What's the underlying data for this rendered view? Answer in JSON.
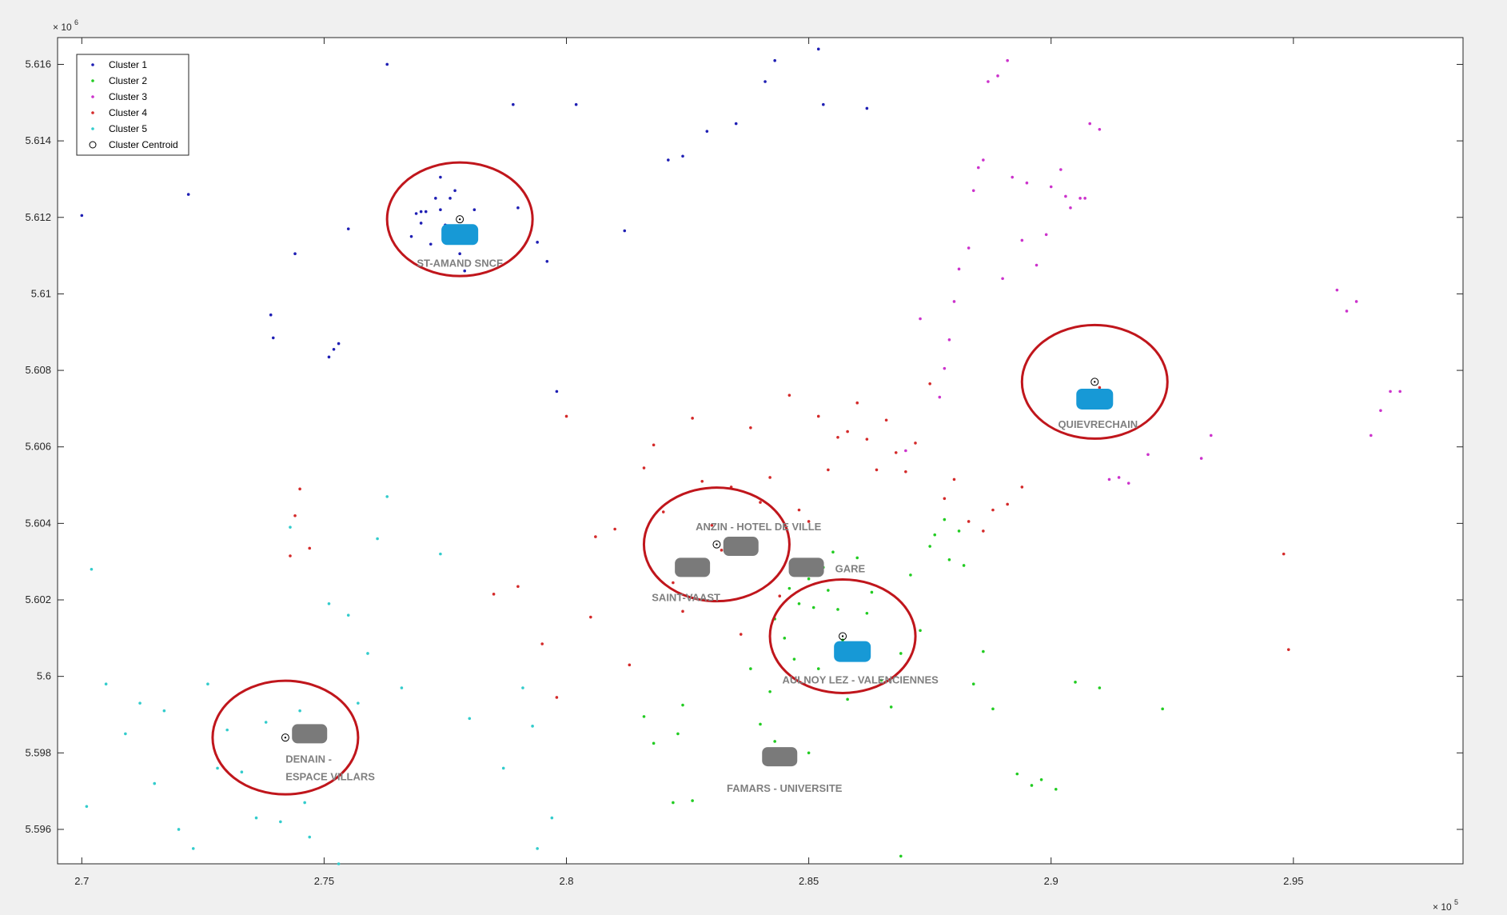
{
  "figure": {
    "x_exponent_base": "× 10",
    "x_exponent_power": "5",
    "y_exponent_base": "× 10",
    "y_exponent_power": "6"
  },
  "colors": {
    "cluster1": "#1f1fb4",
    "cluster2": "#22cc22",
    "cluster3": "#cc33cc",
    "cluster4": "#d42a2a",
    "cluster5": "#33cccc",
    "centroid": "#000000",
    "highlight_ring": "#c0161c",
    "blue_station": "#1799d6",
    "grey_station": "#7a7a7a",
    "station_label": "#808080"
  },
  "chart_data": {
    "type": "scatter",
    "xlim": [
      269500,
      298500
    ],
    "ylim": [
      5595100,
      5616700
    ],
    "x_ticks": [
      270000,
      275000,
      280000,
      285000,
      290000,
      295000
    ],
    "x_tick_labels": [
      "2.7",
      "2.75",
      "2.8",
      "2.85",
      "2.9",
      "2.95"
    ],
    "y_ticks": [
      5596000,
      5598000,
      5600000,
      5602000,
      5604000,
      5606000,
      5608000,
      5610000,
      5612000,
      5614000,
      5616000
    ],
    "y_tick_labels": [
      "5.596",
      "5.598",
      "5.6",
      "5.602",
      "5.604",
      "5.606",
      "5.608",
      "5.61",
      "5.612",
      "5.614",
      "5.616"
    ],
    "grid": false,
    "legend_position": "top-left",
    "legend": [
      "Cluster 1",
      "Cluster 2",
      "Cluster 3",
      "Cluster 4",
      "Cluster 5",
      "Cluster Centroid"
    ],
    "series": [
      {
        "name": "Cluster 1",
        "color": "#1f1fb4",
        "x": [
          270000,
          272200,
          273900,
          273950,
          274400,
          275100,
          275200,
          275300,
          275500,
          276300,
          276800,
          276900,
          277000,
          277000,
          277100,
          277200,
          277300,
          277400,
          277400,
          277500,
          277600,
          277700,
          277800,
          277900,
          278100,
          278900,
          279000,
          279400,
          279600,
          279800,
          280200,
          281200,
          282100,
          282400,
          282900,
          283500,
          284100,
          284300,
          285200,
          285300,
          286200
        ],
        "y": [
          5612050,
          5612600,
          5609450,
          5608850,
          5611050,
          5608350,
          5608550,
          5608700,
          5611700,
          5616000,
          5611500,
          5612100,
          5611850,
          5612150,
          5612150,
          5611300,
          5612500,
          5613050,
          5612200,
          5611800,
          5612500,
          5612700,
          5611050,
          5610600,
          5612200,
          5614950,
          5612250,
          5611350,
          5610850,
          5607450,
          5614950,
          5611650,
          5613500,
          5613600,
          5614250,
          5614450,
          5615550,
          5616100,
          5616400,
          5614950,
          5614850
        ]
      },
      {
        "name": "Cluster 2",
        "color": "#22cc22",
        "x": [
          281600,
          281800,
          282200,
          282300,
          282400,
          282600,
          283800,
          284000,
          284200,
          284300,
          284500,
          284600,
          284700,
          284800,
          284900,
          285000,
          285100,
          285200,
          285300,
          285400,
          285500,
          285600,
          285700,
          285800,
          286000,
          286200,
          286300,
          286500,
          286700,
          286900,
          287100,
          287300,
          287500,
          287600,
          287800,
          287900,
          288100,
          288200,
          288400,
          288600,
          288800,
          289300,
          289600,
          289800,
          290100,
          290500,
          291000,
          292300,
          286900,
          285000,
          284300
        ],
        "y": [
          5598950,
          5598250,
          5596700,
          5598500,
          5599250,
          5596750,
          5600200,
          5598750,
          5599600,
          5601500,
          5601000,
          5602300,
          5600450,
          5601900,
          5602650,
          5602550,
          5601800,
          5600200,
          5602850,
          5602250,
          5603250,
          5601750,
          5600950,
          5599400,
          5603100,
          5601650,
          5602200,
          5599900,
          5599200,
          5600600,
          5602650,
          5601200,
          5603400,
          5603700,
          5604100,
          5603050,
          5603800,
          5602900,
          5599800,
          5600650,
          5599150,
          5597450,
          5597150,
          5597300,
          5597050,
          5599850,
          5599700,
          5599150,
          5595300,
          5598000,
          5598300
        ]
      },
      {
        "name": "Cluster 3",
        "color": "#cc33cc",
        "x": [
          287000,
          287300,
          287700,
          287800,
          287900,
          288000,
          288100,
          288300,
          288400,
          288500,
          288600,
          288700,
          288900,
          289000,
          289100,
          289200,
          289400,
          289500,
          289700,
          289900,
          290000,
          290200,
          290300,
          290400,
          290600,
          290700,
          290800,
          291000,
          291200,
          291400,
          291600,
          292000,
          293100,
          293300,
          295900,
          296100,
          296300,
          296600,
          296800,
          297000,
          297200
        ],
        "y": [
          5605900,
          5609350,
          5607300,
          5608050,
          5608800,
          5609800,
          5610650,
          5611200,
          5612700,
          5613300,
          5613500,
          5615550,
          5615700,
          5610400,
          5616100,
          5613050,
          5611400,
          5612900,
          5610750,
          5611550,
          5612800,
          5613250,
          5612550,
          5612250,
          5612500,
          5612500,
          5614450,
          5614300,
          5605150,
          5605200,
          5605050,
          5605800,
          5605700,
          5606300,
          5610100,
          5609550,
          5609800,
          5606300,
          5606950,
          5607450,
          5607450
        ]
      },
      {
        "name": "Cluster 4",
        "color": "#d42a2a",
        "x": [
          274300,
          274400,
          274500,
          274700,
          278500,
          279000,
          279500,
          279800,
          280000,
          280500,
          280600,
          281000,
          281300,
          281600,
          281800,
          282000,
          282200,
          282400,
          282600,
          282800,
          283000,
          283200,
          283400,
          283600,
          283800,
          284000,
          284200,
          284400,
          284600,
          284800,
          285000,
          285200,
          285400,
          285600,
          285800,
          286000,
          286200,
          286400,
          286600,
          286800,
          287000,
          287200,
          287500,
          287800,
          288000,
          288300,
          288600,
          288800,
          289100,
          289400,
          291000,
          294800,
          294900
        ],
        "y": [
          5603150,
          5604200,
          5604900,
          5603350,
          5602150,
          5602350,
          5600850,
          5599450,
          5606800,
          5601550,
          5603650,
          5603850,
          5600300,
          5605450,
          5606050,
          5604300,
          5602450,
          5601700,
          5606750,
          5605100,
          5603950,
          5603300,
          5604950,
          5601100,
          5606500,
          5604550,
          5605200,
          5602100,
          5607350,
          5604350,
          5604050,
          5606800,
          5605400,
          5606250,
          5606400,
          5607150,
          5606200,
          5605400,
          5606700,
          5605850,
          5605350,
          5606100,
          5607650,
          5604650,
          5605150,
          5604050,
          5603800,
          5604350,
          5604500,
          5604950,
          5607550,
          5603200,
          5600700
        ]
      },
      {
        "name": "Cluster 5",
        "color": "#33cccc",
        "x": [
          270100,
          270200,
          270500,
          270900,
          271200,
          271500,
          271700,
          272000,
          272300,
          272600,
          273000,
          273300,
          273600,
          273800,
          274100,
          274300,
          274500,
          274700,
          274900,
          275100,
          275300,
          275500,
          275700,
          275900,
          276100,
          276300,
          276600,
          277400,
          278000,
          278700,
          279100,
          279400,
          279700,
          279300,
          274600,
          272800
        ],
        "y": [
          5596600,
          5602800,
          5599800,
          5598500,
          5599300,
          5597200,
          5599100,
          5596000,
          5595500,
          5599800,
          5598600,
          5597500,
          5596300,
          5598800,
          5596200,
          5603900,
          5599100,
          5595800,
          5598400,
          5601900,
          5595100,
          5601600,
          5599300,
          5600600,
          5603600,
          5604700,
          5599700,
          5603200,
          5598900,
          5597600,
          5599700,
          5595500,
          5596300,
          5598700,
          5596700,
          5597600
        ]
      }
    ],
    "centroids": {
      "name": "Cluster Centroid",
      "x": [
        277800,
        283100,
        285700,
        290900,
        274200
      ],
      "y": [
        5611950,
        5603450,
        5601050,
        5607700,
        5598400
      ]
    },
    "annotations": {
      "rings": [
        {
          "cx": 277800,
          "cy": 5611950
        },
        {
          "cx": 283100,
          "cy": 5603450
        },
        {
          "cx": 285700,
          "cy": 5601050
        },
        {
          "cx": 290900,
          "cy": 5607700
        },
        {
          "cx": 274200,
          "cy": 5598400
        }
      ],
      "stations": [
        {
          "x": 277800,
          "y": 5611550,
          "color": "blue",
          "label": "ST-AMAND SNCF"
        },
        {
          "x": 283600,
          "y": 5603400,
          "color": "grey",
          "label": "ANZIN - HOTEL DE VILLE"
        },
        {
          "x": 282600,
          "y": 5602850,
          "color": "grey",
          "label": "SAINT-VAAST"
        },
        {
          "x": 284950,
          "y": 5602850,
          "color": "grey",
          "label": "GARE"
        },
        {
          "x": 285900,
          "y": 5600650,
          "color": "blue",
          "label": "AULNOY LEZ - VALENCIENNES"
        },
        {
          "x": 290900,
          "y": 5607250,
          "color": "blue",
          "label": "QUIEVRECHAIN"
        },
        {
          "x": 274700,
          "y": 5598500,
          "color": "grey",
          "label": "DENAIN -"
        },
        {
          "x": 284400,
          "y": 5597900,
          "color": "grey",
          "label": "FAMARS - UNIVERSITE"
        }
      ],
      "extra_labels": [
        "ESPACE VILLARS"
      ]
    }
  }
}
